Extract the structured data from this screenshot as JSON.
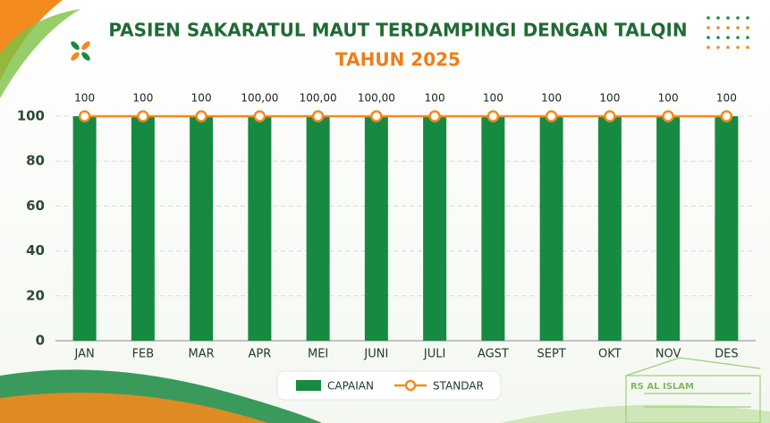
{
  "chart_data": {
    "type": "bar",
    "title": "PASIEN SAKARATUL MAUT TERDAMPINGI DENGAN TALQIN",
    "subtitle": "TAHUN 2025",
    "annotation": "RS AL ISLAM",
    "categories": [
      "JAN",
      "FEB",
      "MAR",
      "APR",
      "MEI",
      "JUNI",
      "JULI",
      "AGST",
      "SEPT",
      "OKT",
      "NOV",
      "DES"
    ],
    "series": [
      {
        "name": "CAPAIAN",
        "type": "bar",
        "color": "#178a41",
        "values": [
          100,
          100,
          100,
          100,
          100,
          100,
          100,
          100,
          100,
          100,
          100,
          100
        ],
        "value_labels": [
          "100",
          "100",
          "100",
          "100,00",
          "100,00",
          "100,00",
          "100",
          "100",
          "100",
          "100",
          "100",
          "100"
        ]
      },
      {
        "name": "STANDAR",
        "type": "line",
        "color": "#f28a1e",
        "values": [
          100,
          100,
          100,
          100,
          100,
          100,
          100,
          100,
          100,
          100,
          100,
          100
        ]
      }
    ],
    "ylim": [
      0,
      100
    ],
    "yticks": [
      0,
      20,
      40,
      60,
      80,
      100
    ],
    "grid": true
  }
}
